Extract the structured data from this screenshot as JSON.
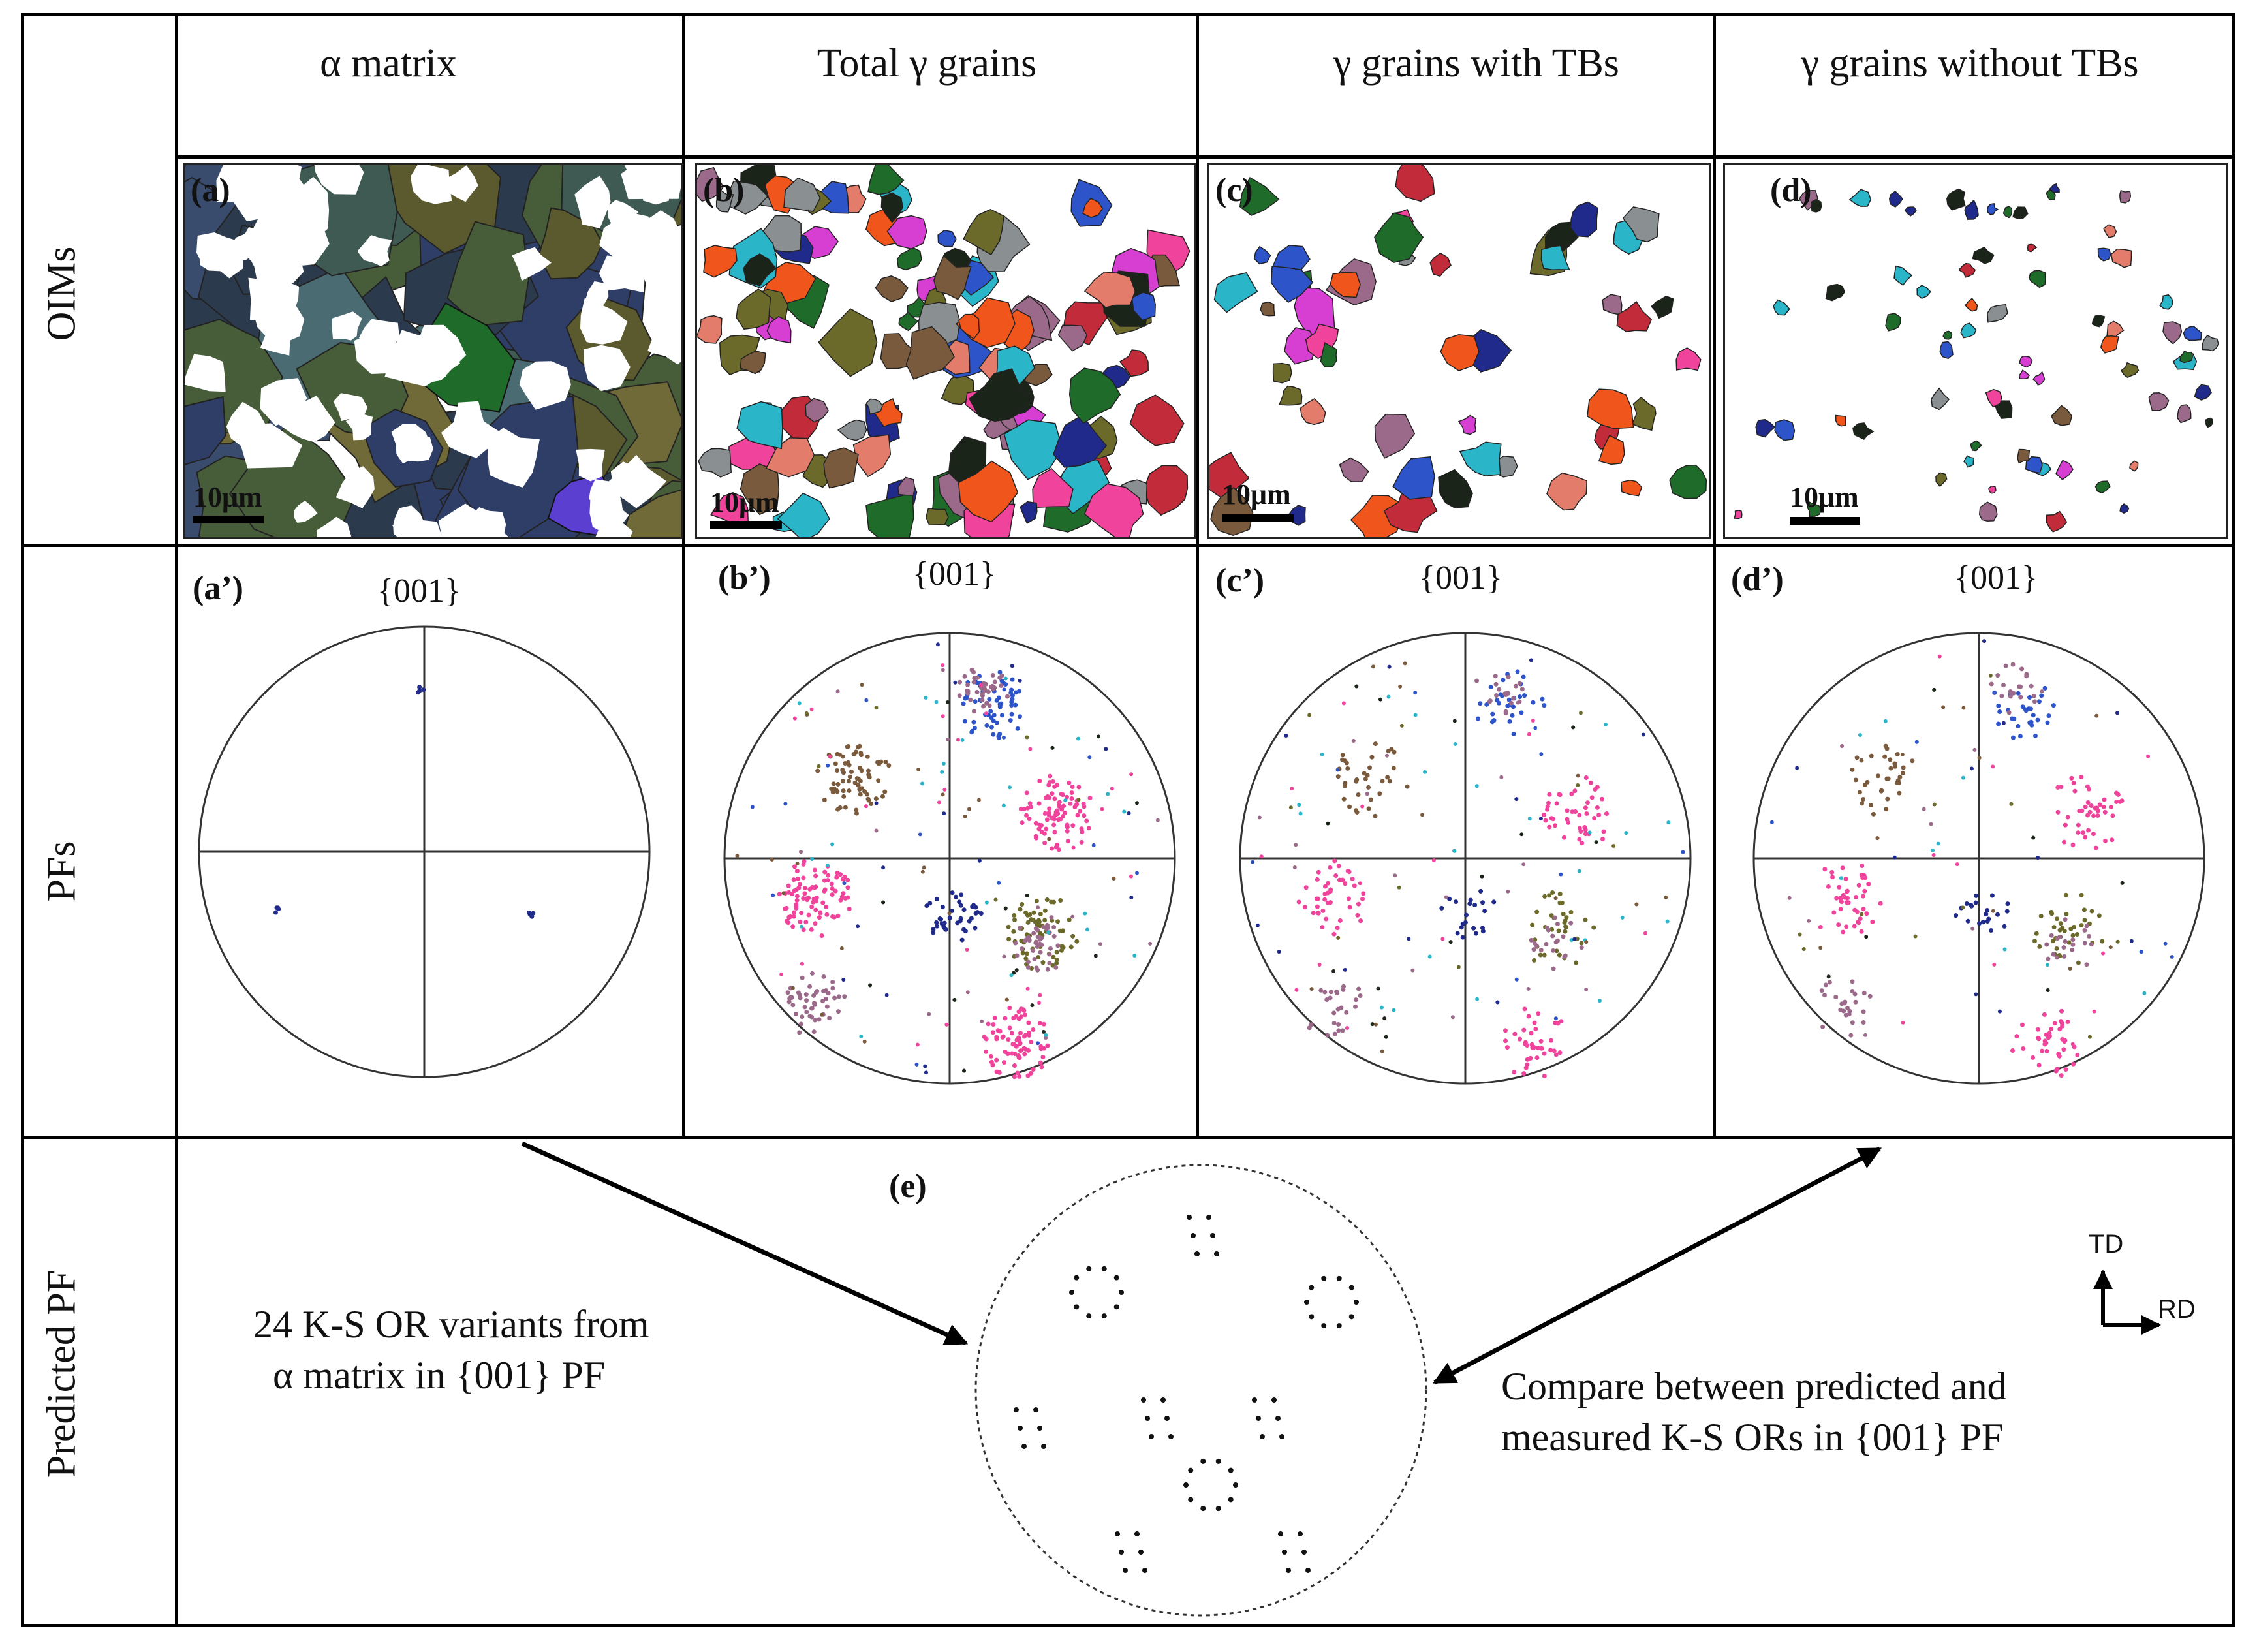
{
  "columns": [
    "α matrix",
    "Total γ grains",
    "γ grains with TBs",
    "γ grains without TBs"
  ],
  "rows": [
    "OIMs",
    "PFs",
    "Predicted PF"
  ],
  "oim_panels": [
    {
      "tag": "(a)",
      "scale": "10μm"
    },
    {
      "tag": "(b)",
      "scale": "10μm"
    },
    {
      "tag": "(c)",
      "scale": "10μm"
    },
    {
      "tag": "(d)",
      "scale": "10μm"
    }
  ],
  "pf_panels": [
    {
      "tag": "(a’)",
      "label": "{001}"
    },
    {
      "tag": "(b’)",
      "label": "{001}"
    },
    {
      "tag": "(c’)",
      "label": "{001}"
    },
    {
      "tag": "(d’)",
      "label": "{001}"
    }
  ],
  "predicted": {
    "tag": "(e)",
    "left_note_line1": "24 K-S OR variants from",
    "left_note_line2": "α matrix in {001} PF",
    "right_note_line1": "Compare between predicted and",
    "right_note_line2": "measured K-S ORs in {001} PF",
    "axis_td": "TD",
    "axis_rd": "RD"
  },
  "colors": {
    "pink": "#f0449c",
    "magenta": "#d63fd1",
    "orange": "#f0561c",
    "blue": "#2e54c9",
    "navy": "#1f2a8a",
    "grey": "#8a8f92",
    "olive": "#6b6a2a",
    "green": "#1f6b2a",
    "cyan": "#2bb5c9",
    "brown": "#7a5a3c",
    "dark": "#1b2418",
    "mauve": "#9b6a8a"
  }
}
